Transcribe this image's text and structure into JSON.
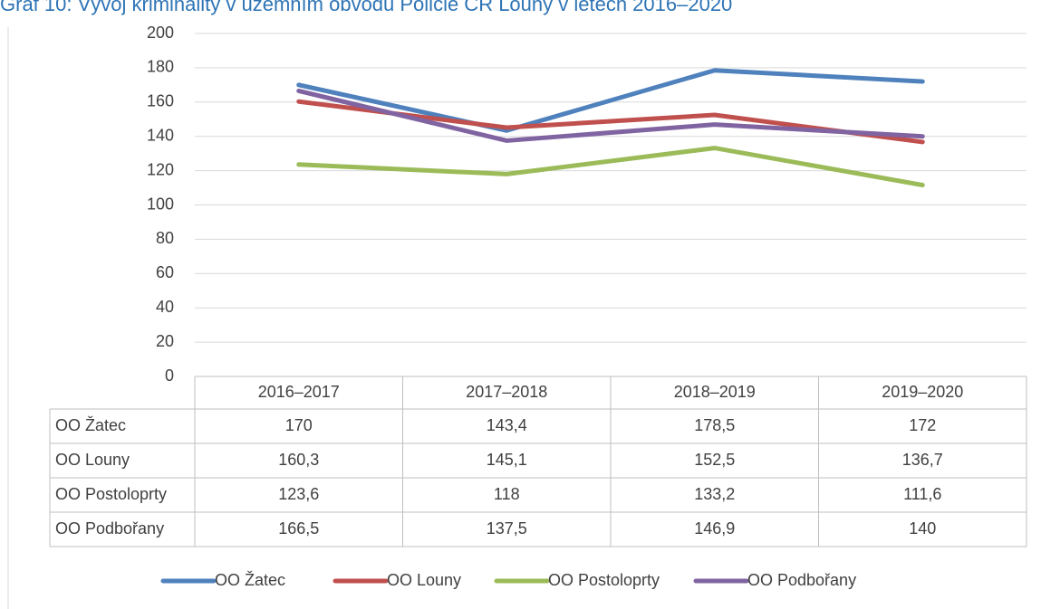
{
  "chart_data": {
    "type": "line",
    "title": "Graf 10: Vývoj kriminality v územním obvodu Policie ČR Louny v letech 2016–2020",
    "categories": [
      "2016–2017",
      "2017–2018",
      "2018–2019",
      "2019–2020"
    ],
    "ylim": [
      0,
      200
    ],
    "yticks": [
      0,
      20,
      40,
      60,
      80,
      100,
      120,
      140,
      160,
      180,
      200
    ],
    "grid": true,
    "legend": "bottom",
    "series": [
      {
        "name": "OO Žatec",
        "color": "#4f81bd",
        "values": [
          170,
          143.4,
          178.5,
          172
        ],
        "value_labels": [
          "170",
          "143,4",
          "178,5",
          "172"
        ]
      },
      {
        "name": "OO Louny",
        "color": "#c0504d",
        "values": [
          160.3,
          145.1,
          152.5,
          136.7
        ],
        "value_labels": [
          "160,3",
          "145,1",
          "152,5",
          "136,7"
        ]
      },
      {
        "name": "OO Postoloprty",
        "color": "#9bbb59",
        "values": [
          123.6,
          118,
          133.2,
          111.6
        ],
        "value_labels": [
          "123,6",
          "118",
          "133,2",
          "111,6"
        ]
      },
      {
        "name": "OO Podbořany",
        "color": "#8064a2",
        "values": [
          166.5,
          137.5,
          146.9,
          140
        ],
        "value_labels": [
          "166,5",
          "137,5",
          "146,9",
          "140"
        ]
      }
    ]
  }
}
